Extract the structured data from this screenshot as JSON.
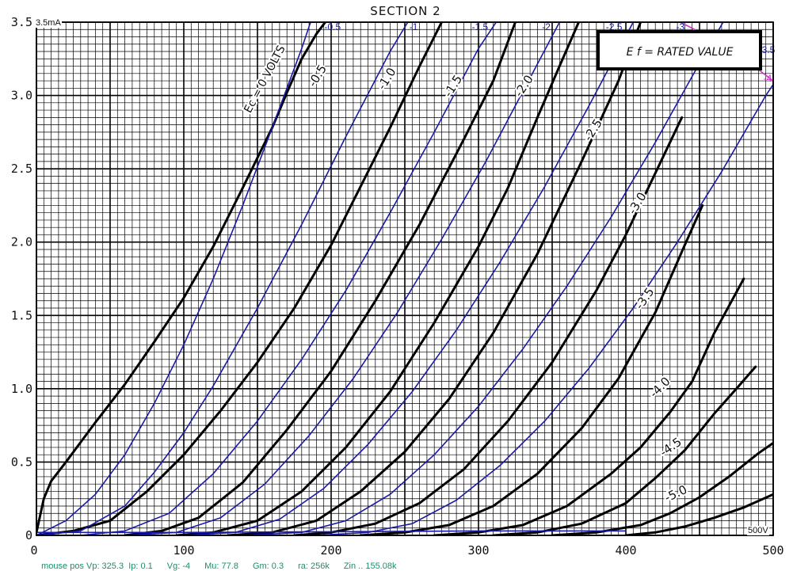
{
  "chart_data": {
    "type": "line",
    "title": "SECTION 2",
    "xlim": [
      0,
      500
    ],
    "ylim": [
      0,
      3.5
    ],
    "x_ticks": [
      "0",
      "100",
      "200",
      "300",
      "400",
      "500"
    ],
    "y_ticks": [
      "0",
      "0.5",
      "1.0",
      "1.5",
      "2.0",
      "2.5",
      "3.0",
      "3.5"
    ],
    "grid": true,
    "x_unit_label": "500V",
    "y_unit_label": "3.5mA",
    "legend_box": "E f = RATED VALUE",
    "black_curves": [
      {
        "label": "Ec = 0 VOLTS",
        "points": [
          [
            0,
            0.02
          ],
          [
            5,
            0.25
          ],
          [
            10,
            0.37
          ],
          [
            20,
            0.5
          ],
          [
            40,
            0.77
          ],
          [
            60,
            1.03
          ],
          [
            80,
            1.32
          ],
          [
            100,
            1.62
          ],
          [
            120,
            1.97
          ],
          [
            140,
            2.37
          ],
          [
            160,
            2.78
          ],
          [
            170,
            3.02
          ],
          [
            180,
            3.25
          ],
          [
            190,
            3.42
          ],
          [
            196,
            3.5
          ]
        ]
      },
      {
        "label": "-0.5",
        "points": [
          [
            0,
            0.0
          ],
          [
            25,
            0.03
          ],
          [
            50,
            0.1
          ],
          [
            75,
            0.3
          ],
          [
            100,
            0.55
          ],
          [
            125,
            0.85
          ],
          [
            150,
            1.18
          ],
          [
            175,
            1.55
          ],
          [
            200,
            1.98
          ],
          [
            220,
            2.38
          ],
          [
            240,
            2.78
          ],
          [
            260,
            3.2
          ],
          [
            275,
            3.5
          ]
        ]
      },
      {
        "label": "-1.0",
        "points": [
          [
            60,
            0.0
          ],
          [
            85,
            0.03
          ],
          [
            110,
            0.12
          ],
          [
            140,
            0.36
          ],
          [
            170,
            0.72
          ],
          [
            200,
            1.12
          ],
          [
            230,
            1.6
          ],
          [
            260,
            2.12
          ],
          [
            290,
            2.7
          ],
          [
            310,
            3.1
          ],
          [
            325,
            3.5
          ]
        ]
      },
      {
        "label": "-1.5",
        "points": [
          [
            95,
            0.0
          ],
          [
            120,
            0.02
          ],
          [
            150,
            0.1
          ],
          [
            180,
            0.3
          ],
          [
            210,
            0.6
          ],
          [
            240,
            0.98
          ],
          [
            270,
            1.45
          ],
          [
            300,
            1.97
          ],
          [
            320,
            2.37
          ],
          [
            340,
            2.85
          ],
          [
            355,
            3.2
          ],
          [
            368,
            3.5
          ]
        ]
      },
      {
        "label": "-2.0",
        "points": [
          [
            130,
            0.0
          ],
          [
            160,
            0.02
          ],
          [
            190,
            0.1
          ],
          [
            220,
            0.3
          ],
          [
            250,
            0.57
          ],
          [
            280,
            0.93
          ],
          [
            310,
            1.38
          ],
          [
            340,
            1.92
          ],
          [
            370,
            2.55
          ],
          [
            395,
            3.1
          ],
          [
            410,
            3.5
          ]
        ]
      },
      {
        "label": "-2.5",
        "points": [
          [
            175,
            0.0
          ],
          [
            200,
            0.02
          ],
          [
            230,
            0.08
          ],
          [
            260,
            0.22
          ],
          [
            290,
            0.45
          ],
          [
            320,
            0.78
          ],
          [
            350,
            1.18
          ],
          [
            380,
            1.67
          ],
          [
            400,
            2.05
          ],
          [
            420,
            2.47
          ],
          [
            438,
            2.85
          ]
        ]
      },
      {
        "label": "-3.0",
        "points": [
          [
            220,
            0.0
          ],
          [
            250,
            0.02
          ],
          [
            280,
            0.07
          ],
          [
            310,
            0.2
          ],
          [
            340,
            0.42
          ],
          [
            370,
            0.73
          ],
          [
            395,
            1.07
          ],
          [
            420,
            1.52
          ],
          [
            440,
            1.98
          ],
          [
            452,
            2.25
          ]
        ]
      },
      {
        "label": "-3.5",
        "points": [
          [
            270,
            0.0
          ],
          [
            300,
            0.02
          ],
          [
            330,
            0.07
          ],
          [
            360,
            0.2
          ],
          [
            390,
            0.42
          ],
          [
            410,
            0.6
          ],
          [
            430,
            0.84
          ],
          [
            445,
            1.05
          ],
          [
            460,
            1.38
          ],
          [
            480,
            1.75
          ]
        ]
      },
      {
        "label": "-4.0",
        "points": [
          [
            310,
            0.0
          ],
          [
            340,
            0.02
          ],
          [
            370,
            0.08
          ],
          [
            400,
            0.22
          ],
          [
            420,
            0.39
          ],
          [
            440,
            0.58
          ],
          [
            460,
            0.83
          ],
          [
            475,
            1.0
          ],
          [
            488,
            1.15
          ]
        ]
      },
      {
        "label": "-4.5",
        "points": [
          [
            350,
            0.0
          ],
          [
            380,
            0.02
          ],
          [
            410,
            0.07
          ],
          [
            430,
            0.15
          ],
          [
            450,
            0.26
          ],
          [
            470,
            0.4
          ],
          [
            490,
            0.56
          ],
          [
            500,
            0.63
          ]
        ]
      },
      {
        "label": "-5.0",
        "points": [
          [
            400,
            0.0
          ],
          [
            420,
            0.02
          ],
          [
            440,
            0.06
          ],
          [
            460,
            0.12
          ],
          [
            480,
            0.19
          ],
          [
            500,
            0.28
          ],
          [
            505,
            0.31
          ]
        ]
      }
    ],
    "blue_model_curves": [
      {
        "label": "-0.5",
        "points": [
          [
            0,
            0.0
          ],
          [
            20,
            0.1
          ],
          [
            40,
            0.28
          ],
          [
            60,
            0.55
          ],
          [
            80,
            0.9
          ],
          [
            100,
            1.3
          ],
          [
            120,
            1.75
          ],
          [
            140,
            2.25
          ],
          [
            160,
            2.78
          ],
          [
            180,
            3.32
          ],
          [
            186,
            3.5
          ]
        ]
      },
      {
        "label": "-1",
        "points": [
          [
            0,
            0.0
          ],
          [
            30,
            0.03
          ],
          [
            60,
            0.2
          ],
          [
            80,
            0.43
          ],
          [
            100,
            0.7
          ],
          [
            120,
            1.02
          ],
          [
            150,
            1.55
          ],
          [
            180,
            2.12
          ],
          [
            210,
            2.72
          ],
          [
            240,
            3.3
          ],
          [
            252,
            3.5
          ]
        ]
      },
      {
        "label": "-1.5",
        "points": [
          [
            30,
            0.0
          ],
          [
            60,
            0.03
          ],
          [
            90,
            0.15
          ],
          [
            120,
            0.42
          ],
          [
            150,
            0.78
          ],
          [
            180,
            1.2
          ],
          [
            210,
            1.67
          ],
          [
            240,
            2.2
          ],
          [
            270,
            2.75
          ],
          [
            300,
            3.32
          ],
          [
            312,
            3.5
          ]
        ]
      },
      {
        "label": "-2",
        "points": [
          [
            60,
            0.0
          ],
          [
            95,
            0.02
          ],
          [
            125,
            0.12
          ],
          [
            155,
            0.35
          ],
          [
            185,
            0.68
          ],
          [
            215,
            1.07
          ],
          [
            245,
            1.52
          ],
          [
            275,
            2.02
          ],
          [
            305,
            2.55
          ],
          [
            335,
            3.12
          ],
          [
            355,
            3.5
          ]
        ]
      },
      {
        "label": "-2.5",
        "points": [
          [
            100,
            0.0
          ],
          [
            135,
            0.02
          ],
          [
            165,
            0.11
          ],
          [
            195,
            0.32
          ],
          [
            225,
            0.62
          ],
          [
            255,
            0.98
          ],
          [
            285,
            1.4
          ],
          [
            315,
            1.87
          ],
          [
            345,
            2.38
          ],
          [
            375,
            2.93
          ],
          [
            405,
            3.5
          ]
        ]
      },
      {
        "label": "-3",
        "points": [
          [
            140,
            0.0
          ],
          [
            180,
            0.02
          ],
          [
            210,
            0.1
          ],
          [
            240,
            0.28
          ],
          [
            270,
            0.55
          ],
          [
            300,
            0.88
          ],
          [
            330,
            1.27
          ],
          [
            360,
            1.7
          ],
          [
            390,
            2.17
          ],
          [
            420,
            2.68
          ],
          [
            450,
            3.22
          ],
          [
            466,
            3.5
          ]
        ]
      },
      {
        "label": "-3.5",
        "points": [
          [
            190,
            0.0
          ],
          [
            225,
            0.02
          ],
          [
            255,
            0.08
          ],
          [
            285,
            0.24
          ],
          [
            315,
            0.48
          ],
          [
            345,
            0.78
          ],
          [
            375,
            1.14
          ],
          [
            405,
            1.55
          ],
          [
            435,
            2.0
          ],
          [
            465,
            2.48
          ],
          [
            495,
            3.0
          ],
          [
            515,
            3.3
          ]
        ]
      },
      {
        "label": "-4",
        "points": [
          [
            0,
            0.02
          ],
          [
            100,
            0.02
          ],
          [
            200,
            0.025
          ],
          [
            300,
            0.03
          ],
          [
            400,
            0.03
          ]
        ]
      }
    ],
    "blue_model_labels": [
      "-0.5",
      "-1",
      "-1.5",
      "-2",
      "-2.5",
      "-3",
      "-3.5"
    ],
    "magenta_line": {
      "points": [
        [
          437,
          3.5
        ],
        [
          470,
          3.33
        ],
        [
          500,
          3.1
        ]
      ],
      "labels": [
        "-3.5",
        "-4"
      ]
    },
    "colors": {
      "grid": "#000000",
      "measured": "#000000",
      "model": "#1a1aa6",
      "marker": "#cc33cc",
      "status": "#1a8f6e"
    }
  },
  "status": {
    "mouse_pos": "mouse pos Vp: 325.3  Ip: 0.1",
    "vg": "Vg: -4",
    "mu": "Mu: 77.8",
    "gm": "Gm: 0.3",
    "ra": "ra: 256k",
    "zin": "Zin .. 155.08k"
  }
}
